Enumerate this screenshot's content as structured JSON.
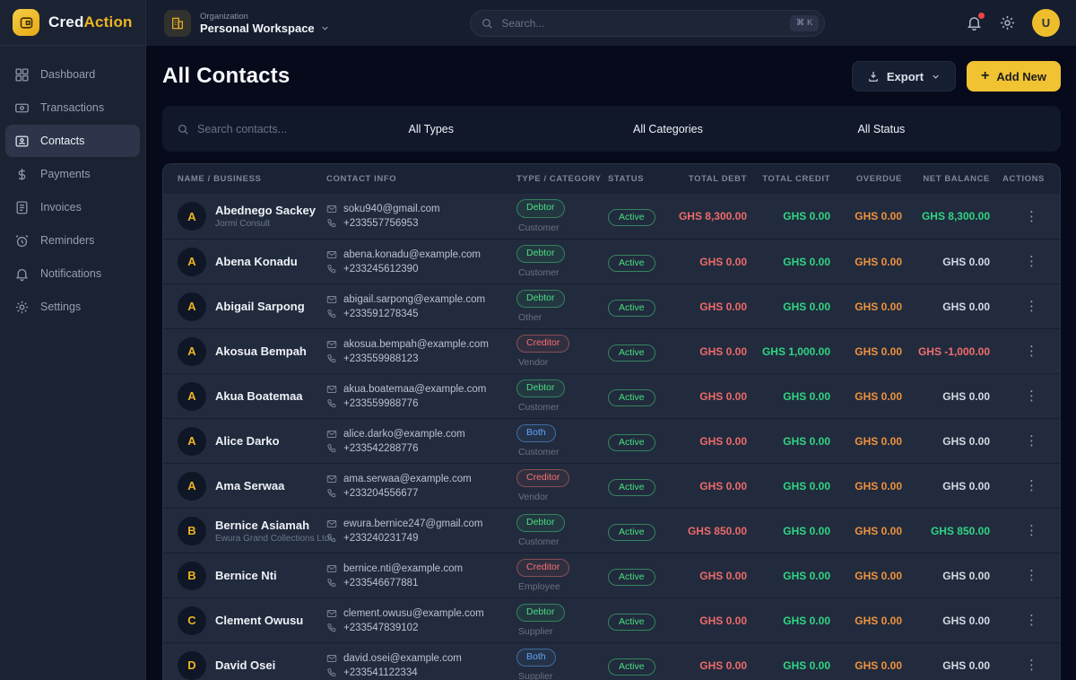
{
  "brand": {
    "name_primary": "Cred",
    "name_accent": "Action",
    "logo_icon": "wallet-icon"
  },
  "sidebar": {
    "items": [
      {
        "label": "Dashboard",
        "icon": "dashboard",
        "active": false
      },
      {
        "label": "Transactions",
        "icon": "transactions",
        "active": false
      },
      {
        "label": "Contacts",
        "icon": "contacts",
        "active": true
      },
      {
        "label": "Payments",
        "icon": "payments",
        "active": false
      },
      {
        "label": "Invoices",
        "icon": "invoices",
        "active": false
      },
      {
        "label": "Reminders",
        "icon": "reminders",
        "active": false
      },
      {
        "label": "Notifications",
        "icon": "notifications",
        "active": false
      },
      {
        "label": "Settings",
        "icon": "settings",
        "active": false
      }
    ]
  },
  "topbar": {
    "org_label": "Organization",
    "org_name": "Personal Workspace",
    "search_placeholder": "Search...",
    "shortcut_keys": "⌘ K",
    "avatar_initial": "U"
  },
  "page": {
    "title": "All Contacts",
    "export_button": "Export",
    "add_new_button": "Add New",
    "add_new_plus": "+"
  },
  "filters": {
    "search_placeholder": "Search contacts...",
    "type": "All Types",
    "category": "All Categories",
    "status": "All Status"
  },
  "table": {
    "headers": [
      "NAME / BUSINESS",
      "CONTACT INFO",
      "TYPE / CATEGORY",
      "STATUS",
      "TOTAL DEBT",
      "TOTAL CREDIT",
      "OVERDUE",
      "NET BALANCE",
      "ACTIONS"
    ],
    "actions_glyph": "⋮",
    "rows": [
      {
        "initial": "A",
        "name": "Abednego Sackey",
        "business": "Jormi Consult",
        "email": "soku940@gmail.com",
        "phone": "+233557756953",
        "type": "Debtor",
        "category": "Customer",
        "status": "Active",
        "total_debt": "GHS 8,300.00",
        "total_credit": "GHS 0.00",
        "overdue": "GHS 0.00",
        "net_balance": "GHS 8,300.00",
        "net_sign": "positive"
      },
      {
        "initial": "A",
        "name": "Abena Konadu",
        "business": "",
        "email": "abena.konadu@example.com",
        "phone": "+233245612390",
        "type": "Debtor",
        "category": "Customer",
        "status": "Active",
        "total_debt": "GHS 0.00",
        "total_credit": "GHS 0.00",
        "overdue": "GHS 0.00",
        "net_balance": "GHS 0.00",
        "net_sign": "neutral"
      },
      {
        "initial": "A",
        "name": "Abigail Sarpong",
        "business": "",
        "email": "abigail.sarpong@example.com",
        "phone": "+233591278345",
        "type": "Debtor",
        "category": "Other",
        "status": "Active",
        "total_debt": "GHS 0.00",
        "total_credit": "GHS 0.00",
        "overdue": "GHS 0.00",
        "net_balance": "GHS 0.00",
        "net_sign": "neutral"
      },
      {
        "initial": "A",
        "name": "Akosua Bempah",
        "business": "",
        "email": "akosua.bempah@example.com",
        "phone": "+233559988123",
        "type": "Creditor",
        "category": "Vendor",
        "status": "Active",
        "total_debt": "GHS 0.00",
        "total_credit": "GHS 1,000.00",
        "overdue": "GHS 0.00",
        "net_balance": "GHS -1,000.00",
        "net_sign": "negative"
      },
      {
        "initial": "A",
        "name": "Akua Boatemaa",
        "business": "",
        "email": "akua.boatemaa@example.com",
        "phone": "+233559988776",
        "type": "Debtor",
        "category": "Customer",
        "status": "Active",
        "total_debt": "GHS 0.00",
        "total_credit": "GHS 0.00",
        "overdue": "GHS 0.00",
        "net_balance": "GHS 0.00",
        "net_sign": "neutral"
      },
      {
        "initial": "A",
        "name": "Alice Darko",
        "business": "",
        "email": "alice.darko@example.com",
        "phone": "+233542288776",
        "type": "Both",
        "category": "Customer",
        "status": "Active",
        "total_debt": "GHS 0.00",
        "total_credit": "GHS 0.00",
        "overdue": "GHS 0.00",
        "net_balance": "GHS 0.00",
        "net_sign": "neutral"
      },
      {
        "initial": "A",
        "name": "Ama Serwaa",
        "business": "",
        "email": "ama.serwaa@example.com",
        "phone": "+233204556677",
        "type": "Creditor",
        "category": "Vendor",
        "status": "Active",
        "total_debt": "GHS 0.00",
        "total_credit": "GHS 0.00",
        "overdue": "GHS 0.00",
        "net_balance": "GHS 0.00",
        "net_sign": "neutral"
      },
      {
        "initial": "B",
        "name": "Bernice Asiamah",
        "business": "Ewura Grand Collections Ltd",
        "email": "ewura.bernice247@gmail.com",
        "phone": "+233240231749",
        "type": "Debtor",
        "category": "Customer",
        "status": "Active",
        "total_debt": "GHS 850.00",
        "total_credit": "GHS 0.00",
        "overdue": "GHS 0.00",
        "net_balance": "GHS 850.00",
        "net_sign": "positive"
      },
      {
        "initial": "B",
        "name": "Bernice Nti",
        "business": "",
        "email": "bernice.nti@example.com",
        "phone": "+233546677881",
        "type": "Creditor",
        "category": "Employee",
        "status": "Active",
        "total_debt": "GHS 0.00",
        "total_credit": "GHS 0.00",
        "overdue": "GHS 0.00",
        "net_balance": "GHS 0.00",
        "net_sign": "neutral"
      },
      {
        "initial": "C",
        "name": "Clement Owusu",
        "business": "",
        "email": "clement.owusu@example.com",
        "phone": "+233547839102",
        "type": "Debtor",
        "category": "Supplier",
        "status": "Active",
        "total_debt": "GHS 0.00",
        "total_credit": "GHS 0.00",
        "overdue": "GHS 0.00",
        "net_balance": "GHS 0.00",
        "net_sign": "neutral"
      },
      {
        "initial": "D",
        "name": "David Osei",
        "business": "",
        "email": "david.osei@example.com",
        "phone": "+233541122334",
        "type": "Both",
        "category": "Supplier",
        "status": "Active",
        "total_debt": "GHS 0.00",
        "total_credit": "GHS 0.00",
        "overdue": "GHS 0.00",
        "net_balance": "GHS 0.00",
        "net_sign": "neutral"
      }
    ]
  },
  "colors": {
    "accent_yellow": "#f1c232",
    "positive_green": "#31d583",
    "badge_green": "#4ade80",
    "negative_red": "#f26d6d",
    "debt_red": "#ee6a6a",
    "overdue_orange": "#f0923e",
    "badge_blue": "#60a5fa",
    "notification_dot_red": "#ef4444",
    "sidebar_bg": "#1b2332",
    "topbar_bg": "#151d2e",
    "page_bg": "#060a1b",
    "row_bg": "#212b3d"
  }
}
